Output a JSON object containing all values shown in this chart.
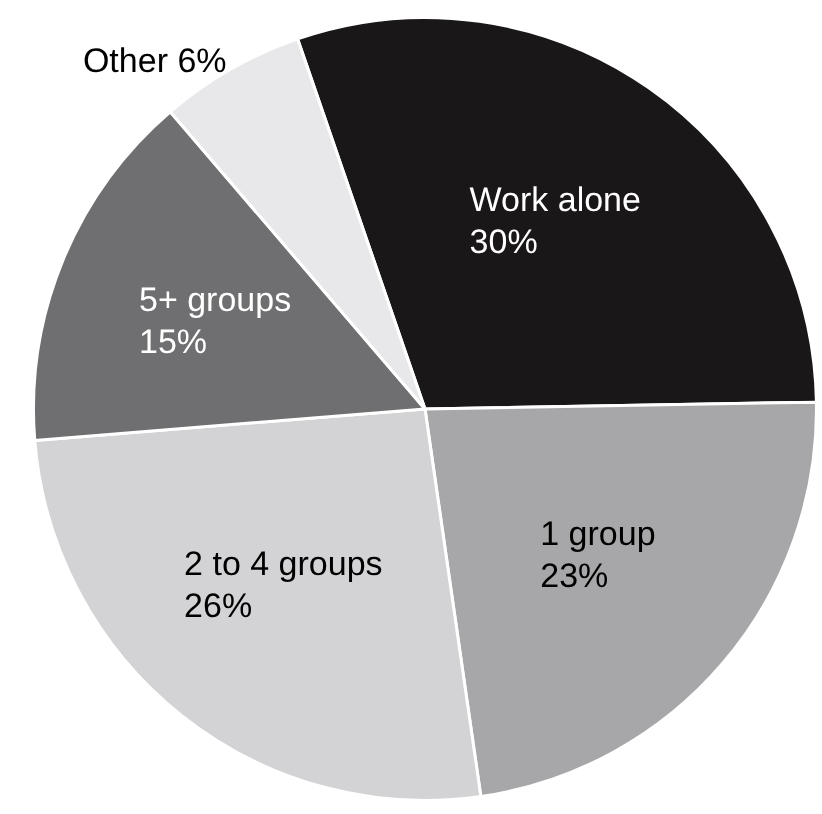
{
  "chart_data": {
    "type": "pie",
    "categories": [
      "Work alone",
      "1 group",
      "2 to 4 groups",
      "5+ groups",
      "Other"
    ],
    "values": [
      30,
      23,
      26,
      15,
      6
    ],
    "value_labels": [
      "30%",
      "23%",
      "26%",
      "15%",
      "6%"
    ],
    "colors": [
      "#1a1718",
      "#a7a7a9",
      "#d3d3d5",
      "#6f6f71",
      "#e8e8ea"
    ],
    "legend": false
  }
}
